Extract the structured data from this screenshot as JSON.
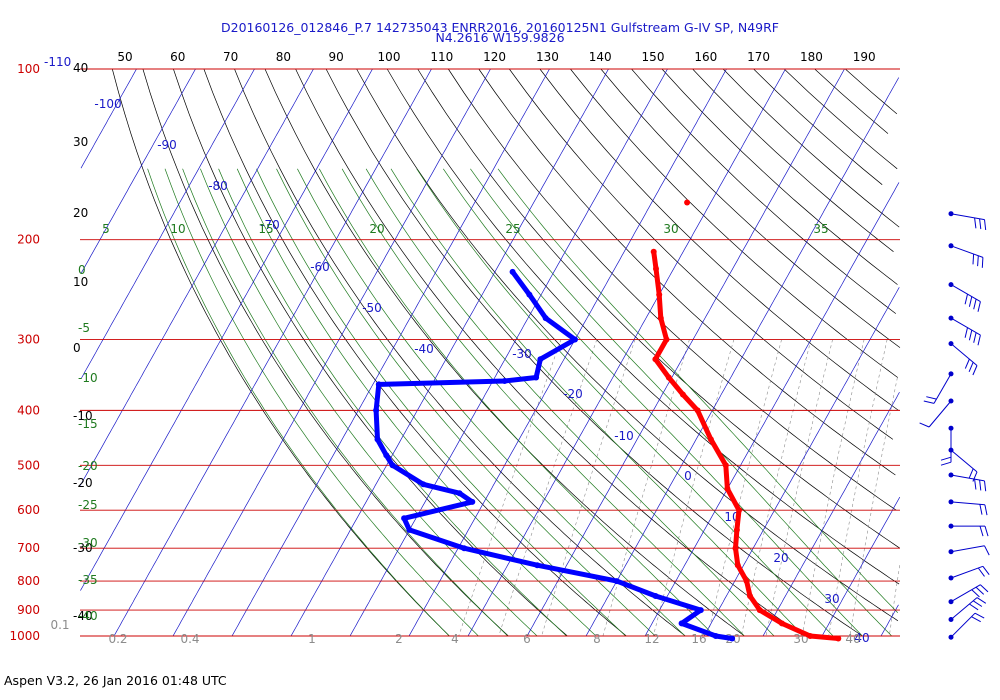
{
  "header": {
    "title_line1": "D20160126_012846_P.7 142735043 ENRR2016, 20160125N1 Gulfstream G-IV SP, N49RF",
    "title_line2": "N4.2616 W159.9826"
  },
  "footer": {
    "text": "Aspen V3.2, 26 Jan 2016  01:48 UTC"
  },
  "colors": {
    "isobar": "#cc0000",
    "isotherm": "#1a1ac8",
    "dry_adiabat": "#000000",
    "moist_adiabat": "#1f7a1f",
    "mixing_ratio": "#8c8c8c",
    "temperature": "#ff0000",
    "dewpoint": "#0000ff",
    "wind_barb": "#0000cc"
  },
  "chart_data": {
    "type": "line",
    "subtype": "skew-T log-P diagram",
    "pressure_levels_hPa": [
      100,
      200,
      300,
      400,
      500,
      600,
      700,
      800,
      900,
      1000
    ],
    "pressure_tick_labels": [
      "100",
      "200",
      "300",
      "400",
      "500",
      "600",
      "700",
      "800",
      "900",
      "1000"
    ],
    "top_axis_labels": [
      "50",
      "60",
      "70",
      "80",
      "90",
      "100",
      "110",
      "120",
      "130",
      "140",
      "150",
      "160",
      "170",
      "180",
      "190"
    ],
    "left_height_labels": [
      "-110",
      "40",
      "30",
      "20",
      "10",
      "0",
      "-10",
      "-20",
      "-30",
      "-40"
    ],
    "left_theta_labels": [
      "0",
      "-5",
      "-10",
      "-15",
      "-20",
      "-25",
      "-30",
      "-35",
      "-40"
    ],
    "isotherm_labels": [
      "-100",
      "-90",
      "-80",
      "-70",
      "-60",
      "-50",
      "-40",
      "-30",
      "-20",
      "-10",
      "0",
      "10",
      "20",
      "30",
      "40"
    ],
    "moist_adiabat_labels": [
      "5",
      "10",
      "15",
      "20",
      "25",
      "30",
      "35"
    ],
    "mixing_ratio_labels": [
      "0.1",
      "0.2",
      "0.4",
      "1",
      "2",
      "4",
      "6",
      "8",
      "12",
      "16",
      "20",
      "30",
      "40"
    ],
    "series": [
      {
        "name": "Temperature",
        "units": "degC",
        "pressure": [
          210,
          225,
          250,
          275,
          300,
          325,
          350,
          375,
          400,
          450,
          500,
          550,
          600,
          650,
          700,
          750,
          800,
          850,
          900,
          950,
          1000,
          1010
        ],
        "values": [
          -45,
          -43,
          -40,
          -37.5,
          -34.5,
          -34.5,
          -30.5,
          -26.5,
          -22.5,
          -17.5,
          -12.5,
          -10,
          -6,
          -4.5,
          -3,
          -1,
          2,
          4,
          7,
          12,
          18,
          23
        ]
      },
      {
        "name": "Dewpoint",
        "units": "degC",
        "pressure": [
          228,
          250,
          275,
          300,
          325,
          350,
          355,
          360,
          400,
          450,
          480,
          500,
          540,
          560,
          580,
          620,
          650,
          700,
          750,
          800,
          850,
          900,
          950,
          1000,
          1010
        ],
        "values": [
          -67,
          -62,
          -57,
          -50,
          -54,
          -53,
          -58,
          -79,
          -77,
          -74,
          -71,
          -69,
          -62,
          -55,
          -52,
          -62,
          -60,
          -49,
          -35,
          -20,
          -12,
          -3,
          -5,
          2,
          5
        ]
      }
    ],
    "extra_points": [
      {
        "pressure": 172,
        "temperature": -44
      }
    ],
    "wind_barbs": [
      {
        "pressure": 180,
        "speed_kt": 25,
        "direction_deg": 100
      },
      {
        "pressure": 205,
        "speed_kt": 30,
        "direction_deg": 110
      },
      {
        "pressure": 240,
        "speed_kt": 35,
        "direction_deg": 120
      },
      {
        "pressure": 275,
        "speed_kt": 35,
        "direction_deg": 120
      },
      {
        "pressure": 305,
        "speed_kt": 30,
        "direction_deg": 130
      },
      {
        "pressure": 345,
        "speed_kt": 20,
        "direction_deg": 210
      },
      {
        "pressure": 385,
        "speed_kt": 10,
        "direction_deg": 220
      },
      {
        "pressure": 430,
        "speed_kt": 15,
        "direction_deg": 180
      },
      {
        "pressure": 470,
        "speed_kt": 20,
        "direction_deg": 130
      },
      {
        "pressure": 520,
        "speed_kt": 25,
        "direction_deg": 100
      },
      {
        "pressure": 580,
        "speed_kt": 20,
        "direction_deg": 95
      },
      {
        "pressure": 640,
        "speed_kt": 15,
        "direction_deg": 90
      },
      {
        "pressure": 710,
        "speed_kt": 10,
        "direction_deg": 80
      },
      {
        "pressure": 790,
        "speed_kt": 15,
        "direction_deg": 70
      },
      {
        "pressure": 870,
        "speed_kt": 25,
        "direction_deg": 60
      },
      {
        "pressure": 935,
        "speed_kt": 25,
        "direction_deg": 50
      },
      {
        "pressure": 1005,
        "speed_kt": 15,
        "direction_deg": 45
      }
    ]
  }
}
